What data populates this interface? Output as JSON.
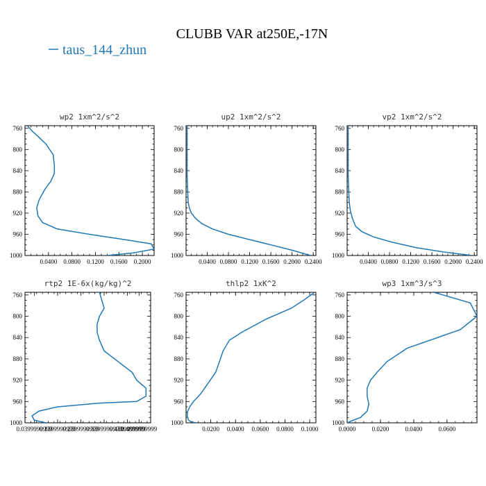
{
  "figure": {
    "title": "CLUBB VAR at250E,-17N",
    "legend": "taus_144_zhun",
    "line_color": "#1f77b4"
  },
  "chart_data": [
    {
      "type": "line",
      "title": "wp2   1xm^2/s^2",
      "xlim": [
        0,
        0.22
      ],
      "ylim": [
        1000,
        755
      ],
      "xticks": [
        0.04,
        0.08,
        0.12,
        0.16,
        0.2
      ],
      "xtick_labels": [
        "0.0400",
        "0.0800",
        "0.1200",
        "0.1600",
        "0.2000"
      ],
      "yticks": [
        760,
        800,
        840,
        880,
        920,
        960,
        1000
      ],
      "ytick_labels": [
        "760",
        "800",
        "840",
        "880",
        "920",
        "960",
        "1000"
      ],
      "series": [
        {
          "x": [
            0.004,
            0.012,
            0.022,
            0.036,
            0.048,
            0.05,
            0.05,
            0.044,
            0.034,
            0.024,
            0.02,
            0.022,
            0.03,
            0.055,
            0.11,
            0.17,
            0.215,
            0.22,
            0.185,
            0.14
          ],
          "y": [
            755,
            765,
            775,
            790,
            810,
            830,
            845,
            860,
            875,
            895,
            910,
            925,
            938,
            950,
            960,
            970,
            978,
            988,
            995,
            1000
          ]
        }
      ]
    },
    {
      "type": "line",
      "title": "up2   1xm^2/s^2",
      "xlim": [
        0,
        0.245
      ],
      "ylim": [
        1000,
        755
      ],
      "xticks": [
        0.04,
        0.08,
        0.12,
        0.16,
        0.2,
        0.24
      ],
      "xtick_labels": [
        "0.0400",
        "0.0800",
        "0.1200",
        "0.1600",
        "0.2000",
        "0.2400"
      ],
      "yticks": [
        760,
        800,
        840,
        880,
        920,
        960,
        1000
      ],
      "ytick_labels": [
        "760",
        "800",
        "840",
        "880",
        "920",
        "960",
        "1000"
      ],
      "series": [
        {
          "x": [
            0.002,
            0.002,
            0.002,
            0.003,
            0.004,
            0.006,
            0.01,
            0.018,
            0.03,
            0.05,
            0.08,
            0.12,
            0.16,
            0.2,
            0.235
          ],
          "y": [
            755,
            800,
            850,
            880,
            900,
            910,
            920,
            930,
            940,
            950,
            960,
            970,
            980,
            990,
            1000
          ]
        }
      ]
    },
    {
      "type": "line",
      "title": "vp2   1xm^2/s^2",
      "xlim": [
        0,
        0.245
      ],
      "ylim": [
        1000,
        755
      ],
      "xticks": [
        0.04,
        0.08,
        0.12,
        0.16,
        0.2,
        0.24
      ],
      "xtick_labels": [
        "0.0400",
        "0.0800",
        "0.1200",
        "0.1600",
        "0.2000",
        "0.2400"
      ],
      "yticks": [
        760,
        800,
        840,
        880,
        920,
        960,
        1000
      ],
      "ytick_labels": [
        "760",
        "800",
        "840",
        "880",
        "920",
        "960",
        "1000"
      ],
      "series": [
        {
          "x": [
            0.002,
            0.002,
            0.002,
            0.003,
            0.004,
            0.006,
            0.01,
            0.016,
            0.028,
            0.05,
            0.085,
            0.13,
            0.18,
            0.235
          ],
          "y": [
            755,
            800,
            850,
            880,
            900,
            915,
            930,
            945,
            955,
            965,
            975,
            985,
            993,
            1000
          ]
        }
      ]
    },
    {
      "type": "line",
      "title": "rtp2   1E-6x(kg/kg)^2",
      "xlim": [
        0,
        0.54
      ],
      "ylim": [
        1000,
        755
      ],
      "xticks": [
        0.04,
        0.14,
        0.24,
        0.34,
        0.44,
        0.49
      ],
      "xtick_labels": [
        "0.0399999999",
        "0.1399999999",
        "0.2399999999",
        "0.3399999999",
        "0.4399999999",
        "0.4899999999"
      ],
      "yticks": [
        760,
        800,
        840,
        880,
        920,
        960,
        1000
      ],
      "ytick_labels": [
        "760",
        "800",
        "840",
        "880",
        "920",
        "960",
        "1000"
      ],
      "series": [
        {
          "x": [
            0.32,
            0.33,
            0.34,
            0.32,
            0.31,
            0.31,
            0.32,
            0.34,
            0.4,
            0.46,
            0.48,
            0.52,
            0.52,
            0.48,
            0.32,
            0.14,
            0.06,
            0.03,
            0.04,
            0.09
          ],
          "y": [
            755,
            770,
            785,
            800,
            815,
            830,
            845,
            865,
            885,
            905,
            920,
            935,
            950,
            960,
            963,
            970,
            978,
            987,
            995,
            1000
          ]
        }
      ]
    },
    {
      "type": "line",
      "title": "thlp2   1xK^2",
      "xlim": [
        0,
        0.105
      ],
      "ylim": [
        1000,
        755
      ],
      "xticks": [
        0.02,
        0.04,
        0.06,
        0.08,
        0.1
      ],
      "xtick_labels": [
        "0.0200",
        "0.0400",
        "0.0600",
        "0.0800",
        "0.1000"
      ],
      "yticks": [
        760,
        800,
        840,
        880,
        920,
        960,
        1000
      ],
      "ytick_labels": [
        "760",
        "800",
        "840",
        "880",
        "920",
        "960",
        "1000"
      ],
      "series": [
        {
          "x": [
            0.104,
            0.095,
            0.085,
            0.065,
            0.045,
            0.035,
            0.03,
            0.027,
            0.024,
            0.018,
            0.012,
            0.006,
            0.003,
            0.001,
            0.001,
            0.002,
            0.004,
            0.008
          ],
          "y": [
            755,
            770,
            785,
            805,
            830,
            845,
            865,
            885,
            905,
            925,
            945,
            960,
            970,
            980,
            988,
            995,
            998,
            1000
          ]
        }
      ]
    },
    {
      "type": "line",
      "title": "wp3   1xm^3/s^3",
      "xlim": [
        0,
        0.078
      ],
      "ylim": [
        1000,
        755
      ],
      "xticks": [
        0.0,
        0.02,
        0.04,
        0.06
      ],
      "xtick_labels": [
        "0.0000",
        "0.0200",
        "0.0400",
        "0.0600"
      ],
      "yticks": [
        760,
        800,
        840,
        880,
        920,
        960,
        1000
      ],
      "ytick_labels": [
        "760",
        "800",
        "840",
        "880",
        "920",
        "960",
        "1000"
      ],
      "series": [
        {
          "x": [
            0.052,
            0.074,
            0.078,
            0.068,
            0.036,
            0.024,
            0.018,
            0.014,
            0.012,
            0.012,
            0.013,
            0.012,
            0.008,
            0.003,
            0.0
          ],
          "y": [
            755,
            775,
            800,
            825,
            860,
            885,
            905,
            920,
            935,
            950,
            965,
            978,
            990,
            996,
            1000
          ]
        }
      ]
    }
  ]
}
